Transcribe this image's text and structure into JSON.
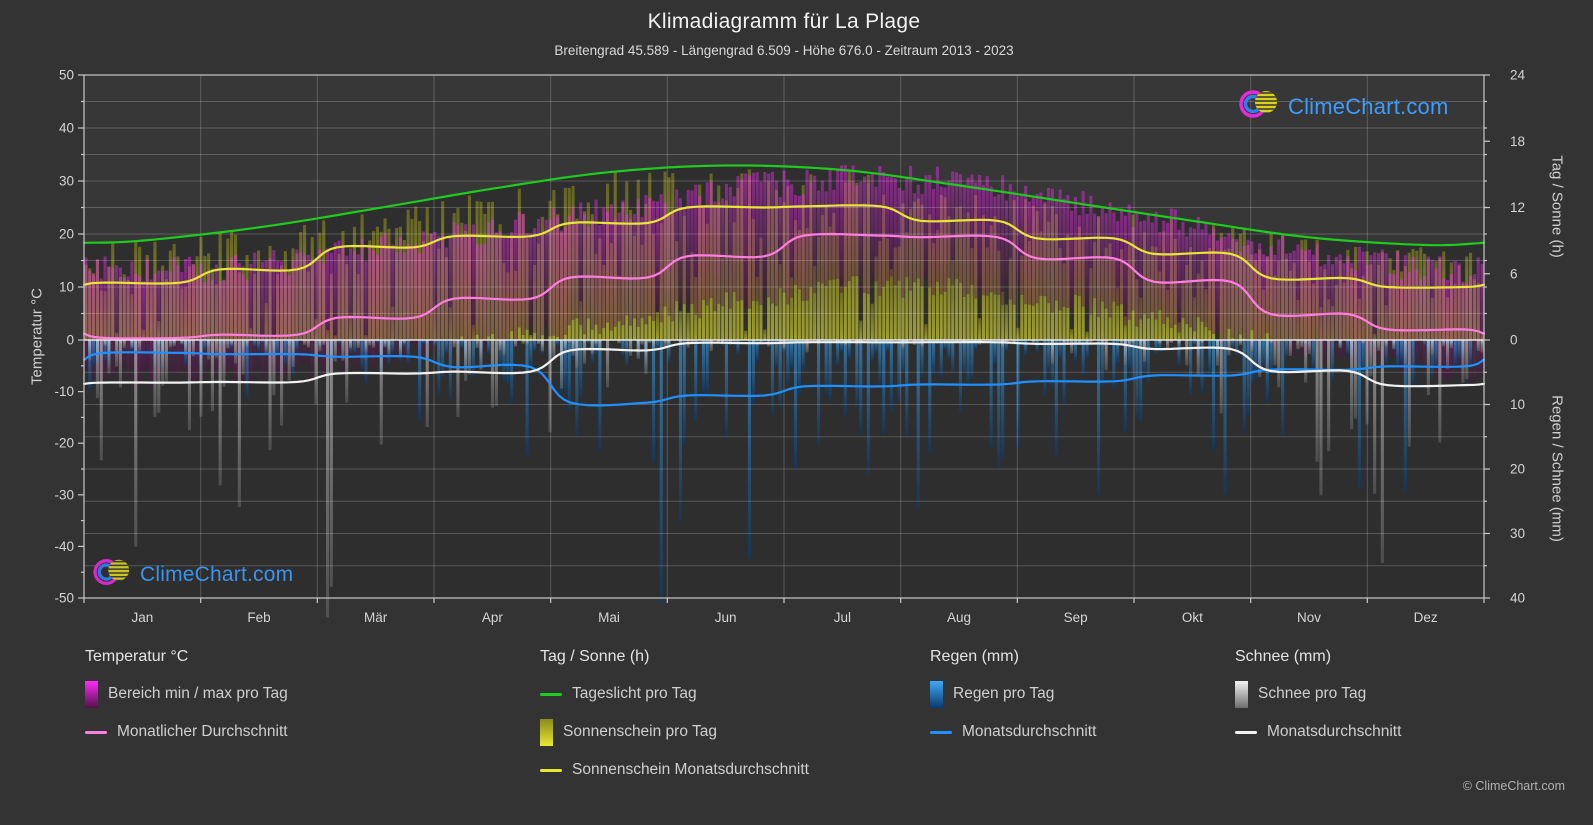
{
  "title": "Klimadiagramm für La Plage",
  "subtitle": "Breitengrad 45.589 - Längengrad 6.509 - Höhe 676.0 - Zeitraum 2013 - 2023",
  "watermark": {
    "text": "ClimeChart.com"
  },
  "copyright": "© ClimeChart.com",
  "colors": {
    "background": "#333333",
    "plot_bg": "#2e2e2e",
    "sky_band": "#373737",
    "grid": "rgba(255,255,255,0.20)",
    "zero_line": "rgba(242,242,242,0.92)",
    "axis": "#c9c9c9",
    "tick_text": "#d4d4d4",
    "daylight_line": "#1ecb1e",
    "sunshine_line": "#e6e637",
    "temp_line": "#ff7de0",
    "rain_line": "#2090ff",
    "snow_line": "#f2f2f2",
    "magenta_hi": "#ff2bff",
    "magenta_lo": "#541048",
    "sun_hi": "#8a8a1e",
    "sun_lo": "#e8e832",
    "rain_hi": "#3fa9f5",
    "rain_lo": "#0a3a6e",
    "snow_hi": "#f2f2f2",
    "snow_lo": "#6e6e6e",
    "brand_blue": "#3b9dff",
    "brand_magenta": "#e32bd9",
    "brand_yellow": "#e8df28"
  },
  "axes": {
    "left_label": "Temperatur °C",
    "left_ticks": [
      50,
      40,
      30,
      20,
      10,
      0,
      -10,
      -20,
      -30,
      -40,
      -50
    ],
    "right_sun_label": "Tag / Sonne (h)",
    "right_sun_ticks": [
      24,
      18,
      12,
      6,
      0
    ],
    "right_precip_label": "Regen / Schnee (mm)",
    "right_precip_ticks": [
      10,
      20,
      30,
      40
    ],
    "months": [
      "Jan",
      "Feb",
      "Mär",
      "Apr",
      "Mai",
      "Jun",
      "Jul",
      "Aug",
      "Sep",
      "Okt",
      "Nov",
      "Dez"
    ]
  },
  "legend": {
    "columns": [
      {
        "x": 85,
        "header": "Temperatur °C",
        "items": [
          {
            "swatch": "gradient",
            "colors": [
              "#ff2bff",
              "#541048"
            ],
            "label": "Bereich min / max pro Tag"
          },
          {
            "swatch": "line",
            "colors": [
              "#ff7de0"
            ],
            "label": "Monatlicher Durchschnitt"
          }
        ]
      },
      {
        "x": 540,
        "header": "Tag / Sonne (h)",
        "items": [
          {
            "swatch": "line",
            "colors": [
              "#1ecb1e"
            ],
            "label": "Tageslicht pro Tag"
          },
          {
            "swatch": "gradient",
            "colors": [
              "#8a8a1e",
              "#e8e832"
            ],
            "label": "Sonnenschein pro Tag"
          },
          {
            "swatch": "line",
            "colors": [
              "#e6e637"
            ],
            "label": "Sonnenschein Monatsdurchschnitt"
          }
        ]
      },
      {
        "x": 930,
        "header": "Regen (mm)",
        "items": [
          {
            "swatch": "gradient",
            "colors": [
              "#3fa9f5",
              "#0a3a6e"
            ],
            "label": "Regen pro Tag"
          },
          {
            "swatch": "line",
            "colors": [
              "#2090ff"
            ],
            "label": "Monatsdurchschnitt"
          }
        ]
      },
      {
        "x": 1235,
        "header": "Schnee (mm)",
        "items": [
          {
            "swatch": "gradient",
            "colors": [
              "#f2f2f2",
              "#6e6e6e"
            ],
            "label": "Schnee pro Tag"
          },
          {
            "swatch": "line",
            "colors": [
              "#f2f2f2"
            ],
            "label": "Monatsdurchschnitt"
          }
        ]
      }
    ]
  },
  "chart_data": {
    "type": "composite",
    "title": "Klimadiagramm für La Plage",
    "months": [
      "Jan",
      "Feb",
      "Mär",
      "Apr",
      "Mai",
      "Jun",
      "Jul",
      "Aug",
      "Sep",
      "Okt",
      "Nov",
      "Dez"
    ],
    "temp_axis": {
      "label": "Temperatur °C",
      "range": [
        -50,
        50
      ],
      "grid_step": 5
    },
    "sun_axis": {
      "label": "Tag / Sonne (h)",
      "range": [
        0,
        24
      ],
      "maps_to_temp": [
        0,
        50
      ]
    },
    "precip_axis": {
      "label": "Regen / Schnee (mm)",
      "range": [
        0,
        40
      ],
      "maps_to_temp": [
        0,
        -50
      ]
    },
    "series": [
      {
        "id": "daylight",
        "name": "Tageslicht pro Tag",
        "type": "line",
        "unit": "h",
        "monthly": [
          9.0,
          10.2,
          11.9,
          13.7,
          15.2,
          15.8,
          15.4,
          14.0,
          12.4,
          10.8,
          9.3,
          8.6
        ]
      },
      {
        "id": "sunshine_avg",
        "name": "Sonnenschein Monatsdurchschnitt",
        "type": "line",
        "unit": "h",
        "monthly": [
          5.2,
          6.4,
          8.4,
          9.4,
          10.6,
          12.0,
          12.1,
          10.8,
          9.2,
          7.8,
          5.6,
          4.8
        ]
      },
      {
        "id": "temp_avg",
        "name": "Monatlicher Durchschnitt",
        "type": "line",
        "unit": "°C",
        "monthly": [
          0.4,
          1.0,
          4.2,
          7.8,
          11.8,
          15.8,
          19.7,
          19.4,
          15.4,
          11.0,
          4.9,
          2.0
        ]
      },
      {
        "id": "rain_avg",
        "name": "Monatsdurchschnitt",
        "type": "line",
        "unit": "mm",
        "monthly": [
          2.0,
          2.2,
          2.6,
          4.2,
          9.7,
          8.6,
          7.2,
          6.9,
          6.4,
          5.5,
          4.6,
          4.1
        ]
      },
      {
        "id": "snow_avg",
        "name": "Monatsdurchschnitt",
        "type": "line",
        "unit": "mm",
        "monthly": [
          6.6,
          6.5,
          5.2,
          4.9,
          1.6,
          0.5,
          0.35,
          0.35,
          0.6,
          1.4,
          4.8,
          7.0
        ]
      },
      {
        "id": "temp_range_daily",
        "name": "Bereich min / max pro Tag",
        "type": "bar",
        "unit": "°C",
        "monthly_max": [
          13,
          14,
          17.5,
          20.5,
          24.5,
          28.5,
          30.5,
          30,
          26,
          21.5,
          16,
          13.5
        ],
        "monthly_min": [
          -7.5,
          -7,
          -3.5,
          -0.5,
          3,
          7,
          10,
          10,
          6.5,
          2.5,
          -2.5,
          -5.5
        ]
      },
      {
        "id": "sunshine_daily",
        "name": "Sonnenschein pro Tag",
        "type": "bar",
        "unit": "h"
      },
      {
        "id": "rain_daily",
        "name": "Regen pro Tag",
        "type": "bar",
        "unit": "mm"
      },
      {
        "id": "snow_daily",
        "name": "Schnee pro Tag",
        "type": "bar",
        "unit": "mm"
      }
    ]
  }
}
